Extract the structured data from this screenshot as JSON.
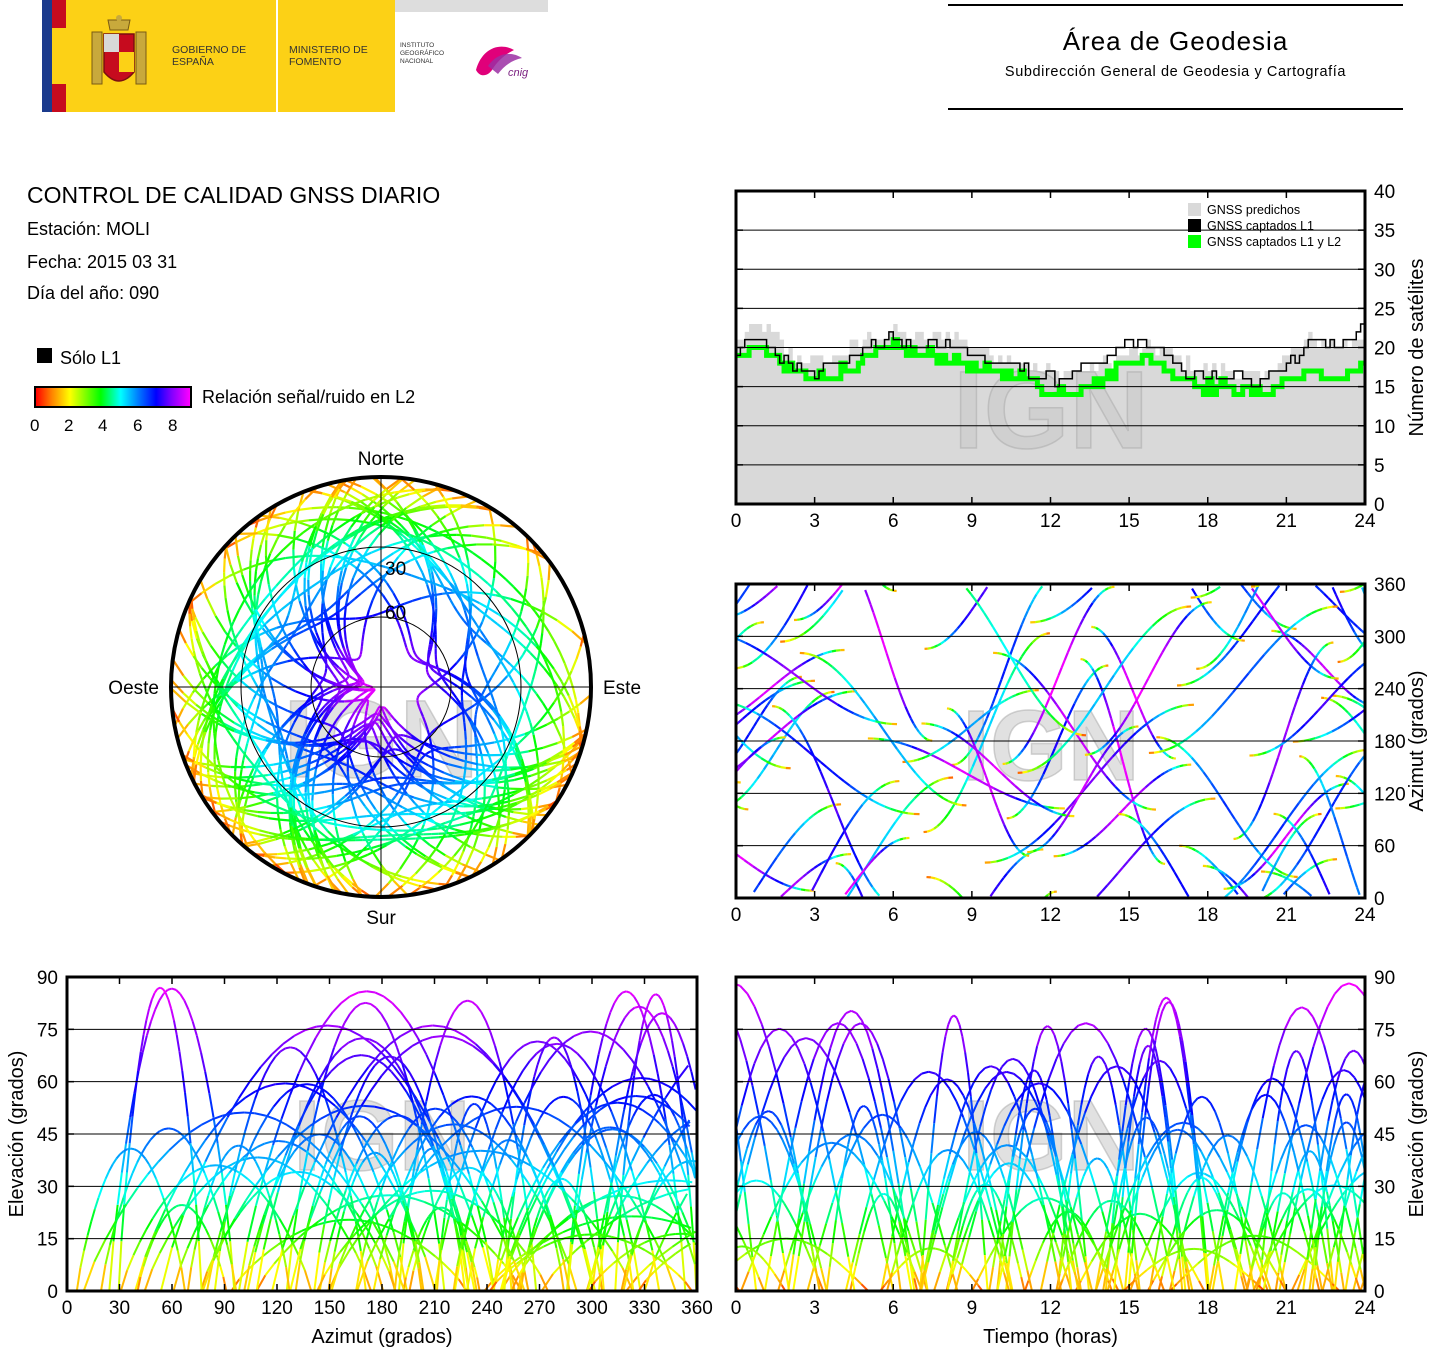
{
  "header": {
    "logo_gobierno": "GOBIERNO DE ESPAÑA",
    "logo_ministerio": "MINISTERIO DE FOMENTO",
    "logo_instituto": "INSTITUTO GEOGRÁFICO NACIONAL",
    "logo_cnig": "cnig",
    "title": "Área de Geodesia",
    "subtitle": "Subdirección General de Geodesia y Cartografía"
  },
  "info": {
    "title": "CONTROL DE CALIDAD GNSS DIARIO",
    "station": "Estación: MOLI",
    "date": "Fecha: 2015 03 31",
    "doy": "Día del año: 090"
  },
  "legend": {
    "l1_only": "Sólo L1",
    "snr_label": "Relación señal/ruido en L2",
    "snr_ticks": [
      "0",
      "2",
      "4",
      "6",
      "8"
    ]
  },
  "watermark": "IGN",
  "chart_data": [
    {
      "id": "sat-count",
      "type": "line",
      "ylabel": "Número de satélites",
      "xlabel": "",
      "xlim": [
        0,
        24
      ],
      "ylim": [
        0,
        40
      ],
      "xticks": [
        0,
        3,
        6,
        9,
        12,
        15,
        18,
        21,
        24
      ],
      "yticks": [
        0,
        5,
        10,
        15,
        20,
        25,
        30,
        35,
        40
      ],
      "grid": true,
      "legend_position": "top-right",
      "series": [
        {
          "name": "GNSS predichos",
          "color": "#d9d9d9",
          "x": [
            0,
            1,
            2,
            3,
            4,
            5,
            6,
            7,
            8,
            9,
            10,
            11,
            12,
            13,
            14,
            15,
            16,
            17,
            18,
            19,
            20,
            21,
            22,
            23,
            24
          ],
          "values": [
            21,
            23,
            19,
            18,
            19,
            21,
            22,
            21,
            22,
            20,
            19,
            18,
            17,
            17,
            18,
            19,
            20,
            18,
            17,
            17,
            16,
            19,
            21,
            20,
            22
          ]
        },
        {
          "name": "GNSS captados L1",
          "color": "#000000",
          "x": [
            0,
            1,
            2,
            3,
            4,
            5,
            6,
            7,
            8,
            9,
            10,
            11,
            12,
            13,
            14,
            15,
            16,
            17,
            18,
            19,
            20,
            21,
            22,
            23,
            24
          ],
          "values": [
            20,
            21,
            18,
            17,
            18,
            20,
            21,
            20,
            21,
            19,
            18,
            17,
            16,
            17,
            18,
            21,
            20,
            17,
            16,
            16,
            16,
            18,
            21,
            20,
            23
          ]
        },
        {
          "name": "GNSS captados L1 y L2",
          "color": "#00ff00",
          "x": [
            0,
            1,
            2,
            3,
            4,
            5,
            6,
            7,
            8,
            9,
            10,
            11,
            12,
            13,
            14,
            15,
            16,
            17,
            18,
            19,
            20,
            21,
            22,
            23,
            24
          ],
          "values": [
            19,
            20,
            17,
            16,
            17,
            19,
            20,
            19,
            19,
            17,
            17,
            16,
            14,
            15,
            16,
            19,
            18,
            16,
            15,
            15,
            14,
            16,
            17,
            16,
            18
          ]
        }
      ]
    },
    {
      "id": "azimuth-time",
      "type": "scatter",
      "ylabel": "Azimut (grados)",
      "xlabel": "",
      "xlim": [
        0,
        24
      ],
      "ylim": [
        0,
        360
      ],
      "xticks": [
        0,
        3,
        6,
        9,
        12,
        15,
        18,
        21,
        24
      ],
      "yticks": [
        0,
        60,
        120,
        180,
        240,
        300,
        360
      ],
      "grid": true
    },
    {
      "id": "skyplot",
      "type": "scatter",
      "projection": "polar",
      "labels": {
        "north": "Norte",
        "south": "Sur",
        "east": "Este",
        "west": "Oeste"
      },
      "rings": [
        "30",
        "60"
      ]
    },
    {
      "id": "elev-azimuth",
      "type": "scatter",
      "xlabel": "Azimut (grados)",
      "ylabel": "Elevación (grados)",
      "xlim": [
        0,
        360
      ],
      "ylim": [
        0,
        90
      ],
      "xticks": [
        0,
        30,
        60,
        90,
        120,
        150,
        180,
        210,
        240,
        270,
        300,
        330,
        360
      ],
      "yticks": [
        0,
        15,
        30,
        45,
        60,
        75,
        90
      ],
      "grid": true
    },
    {
      "id": "elev-time",
      "type": "scatter",
      "xlabel": "Tiempo (horas)",
      "ylabel": "Elevación (grados)",
      "xlim": [
        0,
        24
      ],
      "ylim": [
        0,
        90
      ],
      "xticks": [
        0,
        3,
        6,
        9,
        12,
        15,
        18,
        21,
        24
      ],
      "yticks": [
        0,
        15,
        30,
        45,
        60,
        75,
        90
      ],
      "grid": true
    }
  ]
}
